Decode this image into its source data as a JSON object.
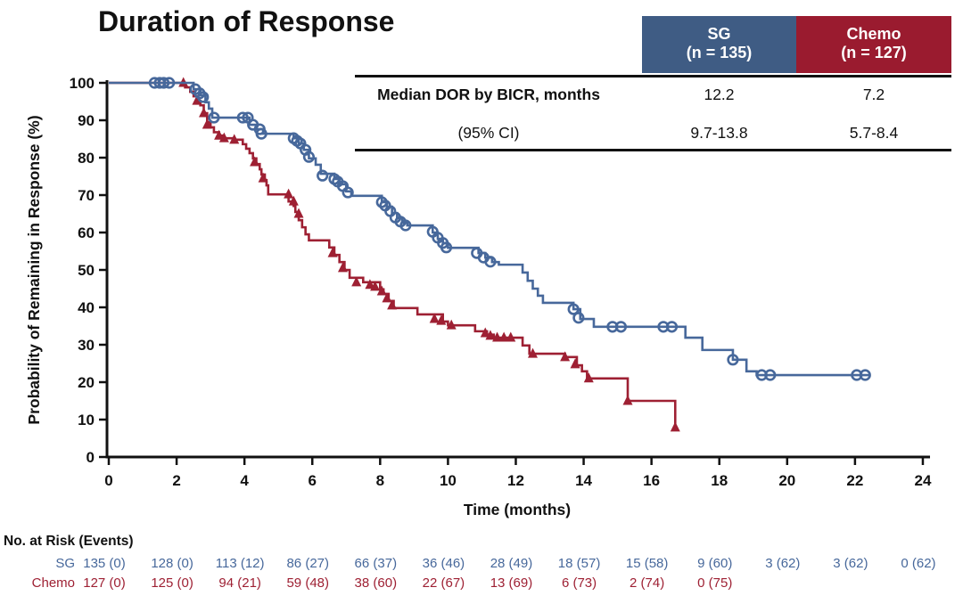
{
  "title": "Duration of Response",
  "colors": {
    "sg": "#47689b",
    "chemo": "#9e2033",
    "sg_box": "#3f5c84",
    "chemo_box": "#9a1b2f",
    "axis": "#111111"
  },
  "stat_table": {
    "columns": [
      {
        "name": "SG",
        "n_label": "(n = 135)"
      },
      {
        "name": "Chemo",
        "n_label": "(n = 127)"
      }
    ],
    "rows": [
      {
        "label": "Median DOR by BICR, months",
        "sg": "12.2",
        "chemo": "7.2"
      },
      {
        "label": "(95% CI)",
        "sg": "9.7-13.8",
        "chemo": "5.7-8.4"
      }
    ]
  },
  "chart_data": {
    "type": "line",
    "subtype": "kaplan-meier-step",
    "title": "Duration of Response",
    "xlabel": "Time (months)",
    "ylabel": "Probability of Remaining in Response (%)",
    "xlim": [
      0,
      24
    ],
    "ylim": [
      0,
      100
    ],
    "xticks": [
      0,
      2,
      4,
      6,
      8,
      10,
      12,
      14,
      16,
      18,
      20,
      22,
      24
    ],
    "yticks": [
      0,
      10,
      20,
      30,
      40,
      50,
      60,
      70,
      80,
      90,
      100
    ],
    "grid": false,
    "legend_position": "none",
    "series": [
      {
        "name": "SG",
        "color": "#47689b",
        "marker": "circle",
        "steps": [
          [
            0,
            100
          ],
          [
            2.5,
            98.3
          ],
          [
            2.7,
            96.7
          ],
          [
            2.85,
            94.8
          ],
          [
            2.95,
            93.1
          ],
          [
            3.05,
            90.7
          ],
          [
            4.15,
            88.8
          ],
          [
            4.35,
            87.6
          ],
          [
            4.55,
            86.4
          ],
          [
            5.45,
            85.2
          ],
          [
            5.6,
            83.8
          ],
          [
            5.75,
            82.1
          ],
          [
            5.9,
            79.8
          ],
          [
            6.1,
            78.1
          ],
          [
            6.25,
            75.7
          ],
          [
            6.65,
            74.3
          ],
          [
            6.8,
            72.9
          ],
          [
            7.0,
            71.0
          ],
          [
            7.15,
            69.8
          ],
          [
            8.05,
            68.1
          ],
          [
            8.2,
            66.9
          ],
          [
            8.35,
            65.2
          ],
          [
            8.5,
            63.8
          ],
          [
            8.65,
            62.6
          ],
          [
            8.8,
            61.9
          ],
          [
            9.55,
            60.0
          ],
          [
            9.7,
            58.3
          ],
          [
            9.85,
            57.1
          ],
          [
            10.0,
            55.9
          ],
          [
            10.9,
            54.5
          ],
          [
            11.1,
            53.3
          ],
          [
            11.3,
            52.1
          ],
          [
            11.5,
            51.4
          ],
          [
            12.2,
            49.3
          ],
          [
            12.35,
            47.1
          ],
          [
            12.5,
            45.0
          ],
          [
            12.65,
            43.1
          ],
          [
            12.8,
            41.2
          ],
          [
            13.7,
            39.5
          ],
          [
            13.9,
            36.9
          ],
          [
            14.3,
            34.8
          ],
          [
            17.0,
            31.9
          ],
          [
            17.5,
            28.6
          ],
          [
            18.4,
            26.0
          ],
          [
            18.8,
            22.9
          ],
          [
            19.1,
            21.9
          ],
          [
            22.45,
            21.9
          ]
        ],
        "censors": [
          [
            1.35,
            100
          ],
          [
            1.5,
            100
          ],
          [
            1.62,
            100
          ],
          [
            1.78,
            100
          ],
          [
            2.55,
            98.3
          ],
          [
            2.68,
            97.2
          ],
          [
            2.78,
            96.2
          ],
          [
            3.1,
            90.7
          ],
          [
            3.95,
            90.7
          ],
          [
            4.1,
            90.7
          ],
          [
            4.25,
            88.8
          ],
          [
            4.45,
            87.6
          ],
          [
            4.5,
            86.4
          ],
          [
            5.45,
            85.2
          ],
          [
            5.55,
            84.5
          ],
          [
            5.65,
            83.8
          ],
          [
            5.8,
            82.1
          ],
          [
            5.9,
            80.2
          ],
          [
            6.3,
            75.2
          ],
          [
            6.65,
            74.3
          ],
          [
            6.75,
            73.6
          ],
          [
            6.9,
            72.4
          ],
          [
            7.05,
            70.7
          ],
          [
            8.05,
            68.1
          ],
          [
            8.15,
            67.2
          ],
          [
            8.3,
            65.7
          ],
          [
            8.45,
            64.0
          ],
          [
            8.6,
            62.9
          ],
          [
            8.75,
            61.9
          ],
          [
            9.55,
            60.2
          ],
          [
            9.7,
            58.6
          ],
          [
            9.85,
            57.2
          ],
          [
            9.95,
            56.0
          ],
          [
            10.85,
            54.5
          ],
          [
            11.05,
            53.3
          ],
          [
            11.25,
            52.2
          ],
          [
            13.7,
            39.5
          ],
          [
            13.85,
            37.2
          ],
          [
            14.85,
            34.8
          ],
          [
            15.1,
            34.8
          ],
          [
            16.35,
            34.8
          ],
          [
            16.6,
            34.8
          ],
          [
            18.4,
            26.0
          ],
          [
            19.25,
            21.9
          ],
          [
            19.5,
            21.9
          ],
          [
            22.05,
            21.9
          ],
          [
            22.3,
            21.9
          ]
        ]
      },
      {
        "name": "Chemo",
        "color": "#9e2033",
        "marker": "triangle",
        "steps": [
          [
            0,
            100
          ],
          [
            2.25,
            98.8
          ],
          [
            2.4,
            97.6
          ],
          [
            2.5,
            96.4
          ],
          [
            2.6,
            95.2
          ],
          [
            2.7,
            94.0
          ],
          [
            2.8,
            91.9
          ],
          [
            2.9,
            89.5
          ],
          [
            3.0,
            88.1
          ],
          [
            3.1,
            86.8
          ],
          [
            3.25,
            85.9
          ],
          [
            3.35,
            85.2
          ],
          [
            3.7,
            84.8
          ],
          [
            3.95,
            83.6
          ],
          [
            4.05,
            82.4
          ],
          [
            4.15,
            81.2
          ],
          [
            4.25,
            79.8
          ],
          [
            4.35,
            78.3
          ],
          [
            4.45,
            76.9
          ],
          [
            4.5,
            75.5
          ],
          [
            4.6,
            74.0
          ],
          [
            4.65,
            72.6
          ],
          [
            4.7,
            70.2
          ],
          [
            5.3,
            68.3
          ],
          [
            5.45,
            67.1
          ],
          [
            5.5,
            65.5
          ],
          [
            5.6,
            63.3
          ],
          [
            5.7,
            61.4
          ],
          [
            5.8,
            59.5
          ],
          [
            5.9,
            57.9
          ],
          [
            6.5,
            56.0
          ],
          [
            6.65,
            54.0
          ],
          [
            6.8,
            52.1
          ],
          [
            6.95,
            50.0
          ],
          [
            7.1,
            47.9
          ],
          [
            7.5,
            46.7
          ],
          [
            8.0,
            44.8
          ],
          [
            8.1,
            43.6
          ],
          [
            8.25,
            41.7
          ],
          [
            8.4,
            39.8
          ],
          [
            9.1,
            38.1
          ],
          [
            9.85,
            36.2
          ],
          [
            10.0,
            35.2
          ],
          [
            10.8,
            33.6
          ],
          [
            11.15,
            32.7
          ],
          [
            11.35,
            31.9
          ],
          [
            12.2,
            29.8
          ],
          [
            12.4,
            27.6
          ],
          [
            13.45,
            26.7
          ],
          [
            13.8,
            24.5
          ],
          [
            13.95,
            22.9
          ],
          [
            14.1,
            21.0
          ],
          [
            15.3,
            15.0
          ],
          [
            16.7,
            7.9
          ]
        ],
        "censors": [
          [
            2.2,
            100
          ],
          [
            2.6,
            95.2
          ],
          [
            2.8,
            91.9
          ],
          [
            2.9,
            88.8
          ],
          [
            3.25,
            85.9
          ],
          [
            3.4,
            85.2
          ],
          [
            3.7,
            84.8
          ],
          [
            4.3,
            78.8
          ],
          [
            4.55,
            74.5
          ],
          [
            5.3,
            70.2
          ],
          [
            5.45,
            68.3
          ],
          [
            5.6,
            65.0
          ],
          [
            6.6,
            54.5
          ],
          [
            6.9,
            50.5
          ],
          [
            7.3,
            46.7
          ],
          [
            7.7,
            46.0
          ],
          [
            7.85,
            45.5
          ],
          [
            8.05,
            44.3
          ],
          [
            8.2,
            42.4
          ],
          [
            8.35,
            40.5
          ],
          [
            9.6,
            36.9
          ],
          [
            9.8,
            36.4
          ],
          [
            10.1,
            35.2
          ],
          [
            11.1,
            33.1
          ],
          [
            11.25,
            32.4
          ],
          [
            11.45,
            31.9
          ],
          [
            11.65,
            31.9
          ],
          [
            11.85,
            31.9
          ],
          [
            12.5,
            27.6
          ],
          [
            13.45,
            26.7
          ],
          [
            13.75,
            24.8
          ],
          [
            14.15,
            21.0
          ],
          [
            15.3,
            15.0
          ],
          [
            16.7,
            7.9
          ]
        ]
      }
    ]
  },
  "risk_table": {
    "title": "No. at Risk (Events)",
    "times": [
      0,
      2,
      4,
      6,
      8,
      10,
      12,
      14,
      16,
      18,
      20,
      22,
      24
    ],
    "rows": [
      {
        "label": "SG",
        "color": "#47689b",
        "values": [
          "135 (0)",
          "128 (0)",
          "113 (12)",
          "86 (27)",
          "66 (37)",
          "36 (46)",
          "28 (49)",
          "18 (57)",
          "15 (58)",
          "9 (60)",
          "3 (62)",
          "3 (62)",
          "0 (62)"
        ]
      },
      {
        "label": "Chemo",
        "color": "#9e2033",
        "values": [
          "127 (0)",
          "125 (0)",
          "94 (21)",
          "59 (48)",
          "38 (60)",
          "22 (67)",
          "13 (69)",
          "6 (73)",
          "2 (74)",
          "0 (75)"
        ]
      }
    ]
  }
}
